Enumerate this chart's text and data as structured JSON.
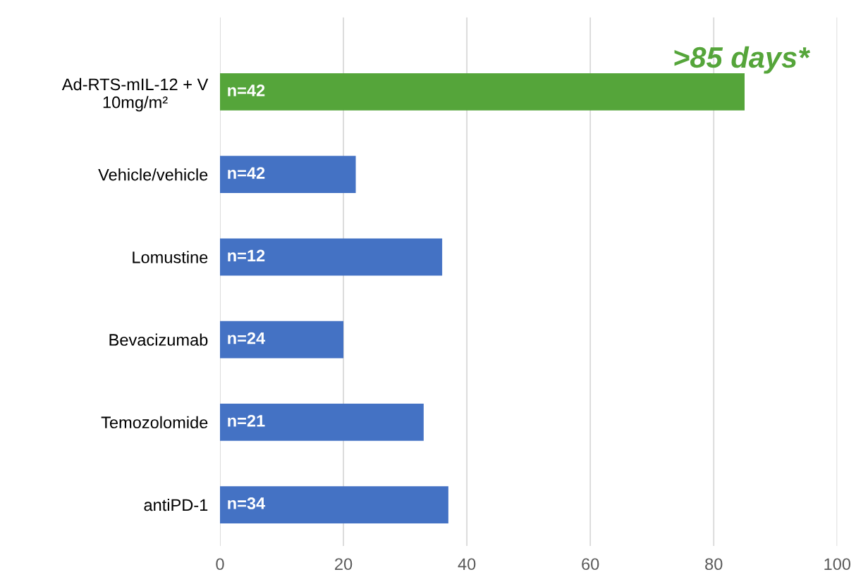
{
  "chart_data": {
    "type": "bar",
    "orientation": "horizontal",
    "categories": [
      "Ad-RTS-mIL-12 + V\n10mg/m²",
      "Vehicle/vehicle",
      "Lomustine",
      "Bevacizumab",
      "Temozolomide",
      "antiPD-1"
    ],
    "values": [
      85,
      22,
      36,
      20,
      33,
      37
    ],
    "colors": [
      "#55a53a",
      "#4472c4",
      "#4472c4",
      "#4472c4",
      "#4472c4",
      "#4472c4"
    ],
    "xlim": [
      0,
      100
    ],
    "xticks": [
      0,
      20,
      40,
      60,
      80,
      100
    ],
    "grid": "x",
    "annotations": [
      {
        "text": ">85 days*",
        "x": 85,
        "y": "Ad-RTS-mIL-12 + V\n10mg/m²"
      },
      "n=42",
      "n=42",
      "n=12",
      "n=24",
      "n=21",
      "n=34"
    ]
  }
}
